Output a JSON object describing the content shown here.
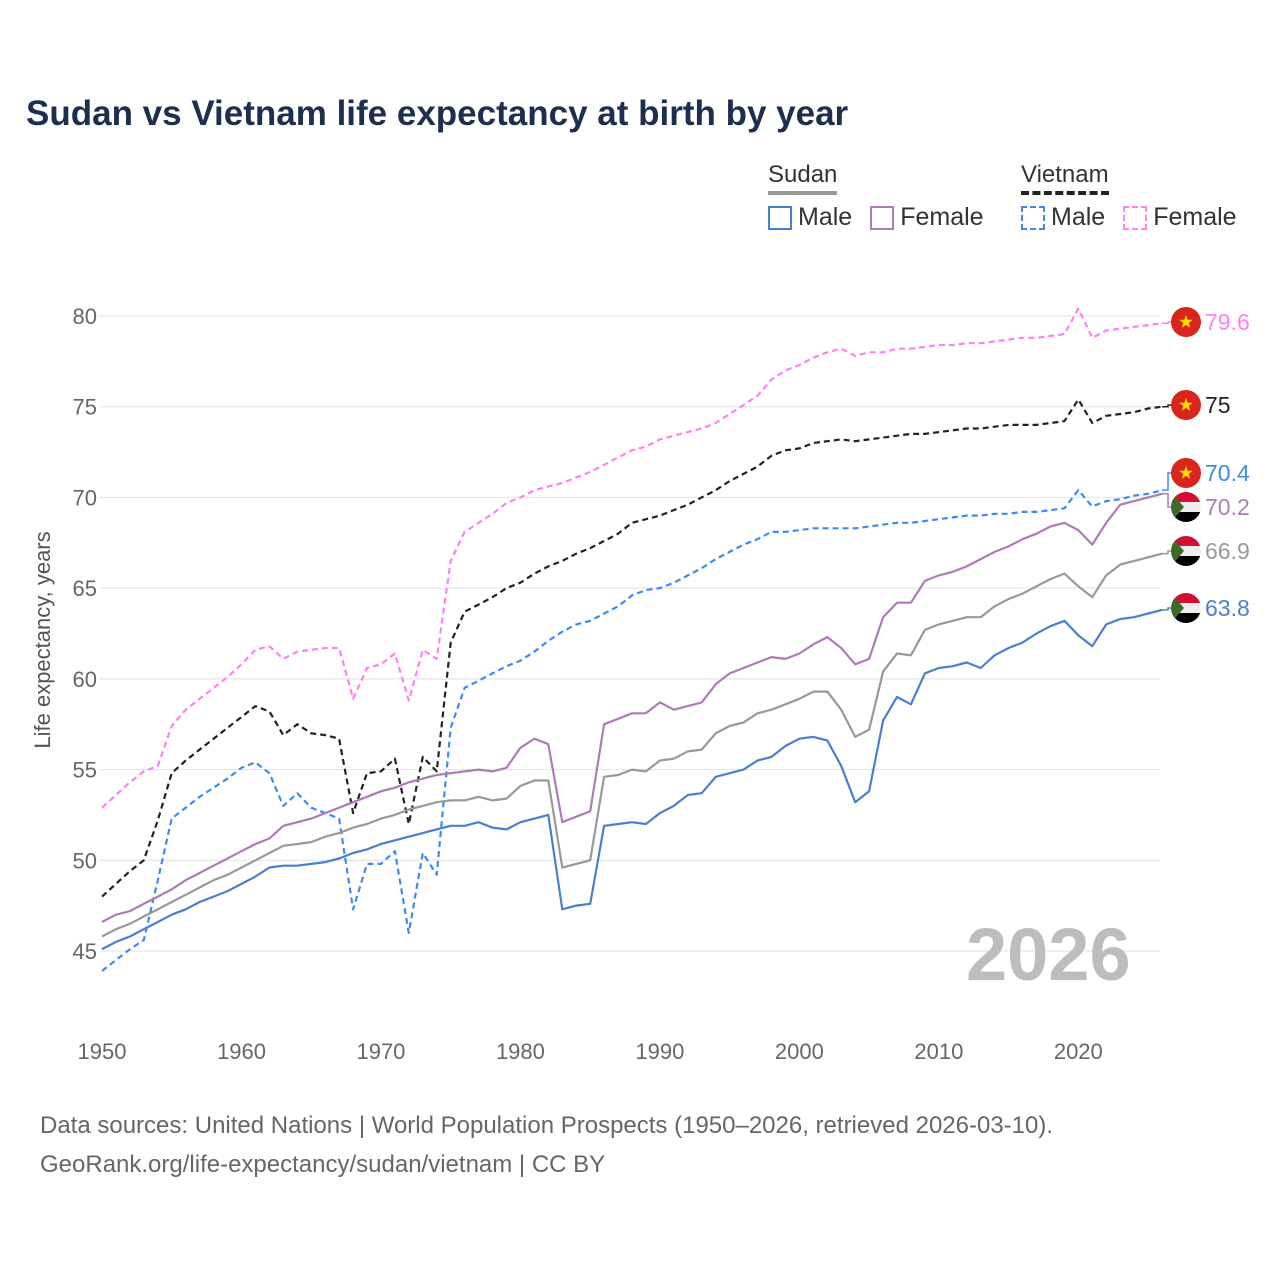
{
  "title": "Sudan vs Vietnam life expectancy at birth by year",
  "legend": {
    "sudan": {
      "label": "Sudan",
      "male": "Male",
      "female": "Female"
    },
    "vietnam": {
      "label": "Vietnam",
      "male": "Male",
      "female": "Female"
    }
  },
  "year_display": "2026",
  "source_line1": "Data sources: United Nations | World Population Prospects (1950–2026, retrieved 2026-03-10).",
  "source_line2": "GeoRank.org/life-expectancy/sudan/vietnam | CC BY",
  "chart_data": {
    "type": "line",
    "title": "Sudan vs Vietnam life expectancy at birth by year",
    "xlabel": "",
    "ylabel": "Life expectancy, years",
    "xlim": [
      1950,
      2026
    ],
    "ylim": [
      43,
      82
    ],
    "x_ticks": [
      "1950",
      "1960",
      "1970",
      "1980",
      "1990",
      "2000",
      "2010",
      "2020"
    ],
    "y_ticks": [
      "45",
      "50",
      "55",
      "60",
      "65",
      "70",
      "75",
      "80"
    ],
    "grid": true,
    "x_start": 1950,
    "series": [
      {
        "name": "Vietnam Female",
        "country": "Vietnam",
        "flag": "vietnam",
        "color": "#ff80f4",
        "dash": true,
        "end_label": "79.6",
        "values": [
          52.9,
          53.6,
          54.3,
          54.9,
          55.2,
          57.4,
          58.3,
          58.9,
          59.5,
          60.1,
          60.8,
          61.6,
          61.8,
          61.1,
          61.5,
          61.6,
          61.7,
          61.7,
          58.9,
          60.6,
          60.8,
          61.4,
          58.8,
          61.6,
          61.1,
          66.5,
          68.1,
          68.6,
          69.1,
          69.7,
          70.0,
          70.4,
          70.6,
          70.8,
          71.1,
          71.4,
          71.8,
          72.2,
          72.6,
          72.8,
          73.2,
          73.4,
          73.6,
          73.8,
          74.1,
          74.6,
          75.1,
          75.6,
          76.5,
          77.0,
          77.3,
          77.7,
          78.0,
          78.2,
          77.8,
          78.0,
          78.0,
          78.2,
          78.2,
          78.3,
          78.4,
          78.4,
          78.5,
          78.5,
          78.6,
          78.7,
          78.8,
          78.8,
          78.9,
          79.0,
          80.4,
          78.8,
          79.2,
          79.3,
          79.4,
          79.5,
          79.6
        ]
      },
      {
        "name": "Vietnam",
        "country": "Vietnam",
        "flag": "vietnam",
        "color": "#222222",
        "dash": true,
        "end_label": "75",
        "values": [
          48.0,
          48.7,
          49.4,
          50.0,
          52.2,
          54.8,
          55.5,
          56.1,
          56.7,
          57.3,
          57.9,
          58.5,
          58.2,
          56.9,
          57.5,
          57.0,
          56.9,
          56.7,
          52.6,
          54.8,
          54.9,
          55.6,
          52.0,
          55.7,
          54.9,
          62.0,
          63.7,
          64.1,
          64.5,
          65.0,
          65.3,
          65.8,
          66.2,
          66.5,
          66.9,
          67.2,
          67.6,
          68.0,
          68.6,
          68.8,
          69.0,
          69.3,
          69.6,
          70.0,
          70.4,
          70.9,
          71.3,
          71.7,
          72.3,
          72.6,
          72.7,
          73.0,
          73.1,
          73.2,
          73.1,
          73.2,
          73.3,
          73.4,
          73.5,
          73.5,
          73.6,
          73.7,
          73.8,
          73.8,
          73.9,
          74.0,
          74.0,
          74.0,
          74.1,
          74.2,
          75.4,
          74.1,
          74.5,
          74.6,
          74.7,
          74.9,
          75.0
        ]
      },
      {
        "name": "Vietnam Male",
        "country": "Vietnam",
        "flag": "vietnam",
        "color": "#3d8bf2",
        "dash": true,
        "end_label": "70.4",
        "values": [
          43.9,
          44.5,
          45.1,
          45.6,
          48.9,
          52.3,
          52.9,
          53.5,
          54.0,
          54.5,
          55.1,
          55.4,
          54.8,
          53.0,
          53.7,
          52.9,
          52.6,
          52.3,
          47.3,
          49.8,
          49.8,
          50.5,
          46.0,
          50.4,
          49.2,
          57.3,
          59.5,
          59.9,
          60.3,
          60.7,
          61.0,
          61.5,
          62.1,
          62.6,
          63.0,
          63.2,
          63.6,
          64.0,
          64.6,
          64.9,
          65.0,
          65.3,
          65.7,
          66.1,
          66.6,
          67.0,
          67.4,
          67.7,
          68.1,
          68.1,
          68.2,
          68.3,
          68.3,
          68.3,
          68.3,
          68.4,
          68.5,
          68.6,
          68.6,
          68.7,
          68.8,
          68.9,
          69.0,
          69.0,
          69.1,
          69.1,
          69.2,
          69.2,
          69.3,
          69.4,
          70.4,
          69.5,
          69.8,
          69.9,
          70.1,
          70.2,
          70.4
        ]
      },
      {
        "name": "Sudan Female",
        "country": "Sudan",
        "flag": "sudan",
        "color": "#b07ab8",
        "dash": false,
        "end_label": "70.2",
        "values": [
          46.6,
          47.0,
          47.2,
          47.6,
          48.0,
          48.4,
          48.9,
          49.3,
          49.7,
          50.1,
          50.5,
          50.9,
          51.2,
          51.9,
          52.1,
          52.3,
          52.6,
          52.9,
          53.2,
          53.5,
          53.8,
          54.0,
          54.3,
          54.5,
          54.7,
          54.8,
          54.9,
          55.0,
          54.9,
          55.1,
          56.2,
          56.7,
          56.4,
          52.1,
          52.4,
          52.7,
          57.5,
          57.8,
          58.1,
          58.1,
          58.7,
          58.3,
          58.5,
          58.7,
          59.7,
          60.3,
          60.6,
          60.9,
          61.2,
          61.1,
          61.4,
          61.9,
          62.3,
          61.7,
          60.8,
          61.1,
          63.4,
          64.2,
          64.2,
          65.4,
          65.7,
          65.9,
          66.2,
          66.6,
          67.0,
          67.3,
          67.7,
          68.0,
          68.4,
          68.6,
          68.2,
          67.4,
          68.6,
          69.6,
          69.8,
          70.0,
          70.2
        ]
      },
      {
        "name": "Sudan",
        "country": "Sudan",
        "flag": "sudan",
        "color": "#999999",
        "dash": false,
        "end_label": "66.9",
        "values": [
          45.8,
          46.2,
          46.5,
          46.9,
          47.3,
          47.7,
          48.1,
          48.5,
          48.9,
          49.2,
          49.6,
          50.0,
          50.4,
          50.8,
          50.9,
          51.0,
          51.3,
          51.5,
          51.8,
          52.0,
          52.3,
          52.5,
          52.8,
          53.0,
          53.2,
          53.3,
          53.3,
          53.5,
          53.3,
          53.4,
          54.1,
          54.4,
          54.4,
          49.6,
          49.8,
          50.0,
          54.6,
          54.7,
          55.0,
          54.9,
          55.5,
          55.6,
          56.0,
          56.1,
          57.0,
          57.4,
          57.6,
          58.1,
          58.3,
          58.6,
          58.9,
          59.3,
          59.3,
          58.3,
          56.8,
          57.2,
          60.4,
          61.4,
          61.3,
          62.7,
          63.0,
          63.2,
          63.4,
          63.4,
          64.0,
          64.4,
          64.7,
          65.1,
          65.5,
          65.8,
          65.1,
          64.5,
          65.7,
          66.3,
          66.5,
          66.7,
          66.9
        ]
      },
      {
        "name": "Sudan Male",
        "country": "Sudan",
        "flag": "sudan",
        "color": "#4a7fd0",
        "dash": false,
        "end_label": "63.8",
        "values": [
          45.1,
          45.5,
          45.8,
          46.2,
          46.6,
          47.0,
          47.3,
          47.7,
          48.0,
          48.3,
          48.7,
          49.1,
          49.6,
          49.7,
          49.7,
          49.8,
          49.9,
          50.1,
          50.4,
          50.6,
          50.9,
          51.1,
          51.3,
          51.5,
          51.7,
          51.9,
          51.9,
          52.1,
          51.8,
          51.7,
          52.1,
          52.3,
          52.5,
          47.3,
          47.5,
          47.6,
          51.9,
          52.0,
          52.1,
          52.0,
          52.6,
          53.0,
          53.6,
          53.7,
          54.6,
          54.8,
          55.0,
          55.5,
          55.7,
          56.3,
          56.7,
          56.8,
          56.6,
          55.2,
          53.2,
          53.8,
          57.7,
          59.0,
          58.6,
          60.3,
          60.6,
          60.7,
          60.9,
          60.6,
          61.3,
          61.7,
          62.0,
          62.5,
          62.9,
          63.2,
          62.4,
          61.8,
          63.0,
          63.3,
          63.4,
          63.6,
          63.8
        ]
      }
    ]
  }
}
